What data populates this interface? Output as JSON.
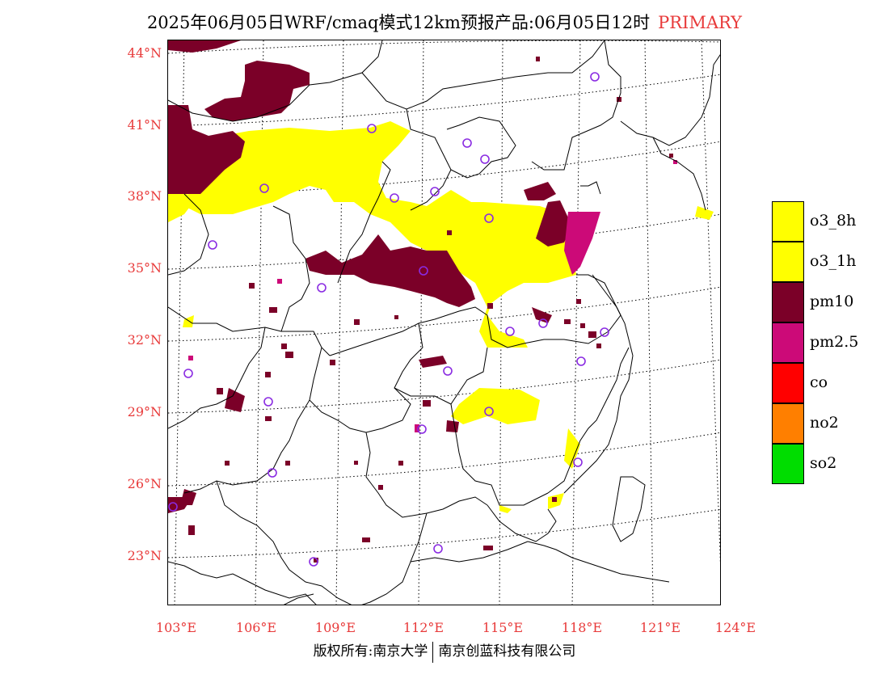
{
  "header": {
    "title": "2025年06月05日WRF/cmaq模式12km预报产品:06月05日12时",
    "tag": "PRIMARY"
  },
  "axes": {
    "lat_labels": [
      "44°N",
      "41°N",
      "38°N",
      "35°N",
      "32°N",
      "29°N",
      "26°N",
      "23°N"
    ],
    "lon_labels": [
      "103°E",
      "106°E",
      "109°E",
      "112°E",
      "115°E",
      "118°E",
      "121°E",
      "124°E"
    ]
  },
  "legend": [
    {
      "label": "o3_8h",
      "color": "#ffff00"
    },
    {
      "label": "o3_1h",
      "color": "#ffff00"
    },
    {
      "label": "pm10",
      "color": "#7b0028"
    },
    {
      "label": "pm2.5",
      "color": "#cc0a78"
    },
    {
      "label": "co",
      "color": "#ff0000"
    },
    {
      "label": "no2",
      "color": "#ff7f00"
    },
    {
      "label": "so2",
      "color": "#00dd00"
    }
  ],
  "footer": {
    "left": "版权所有:南京大学",
    "right": "南京创蓝科技有限公司"
  }
}
